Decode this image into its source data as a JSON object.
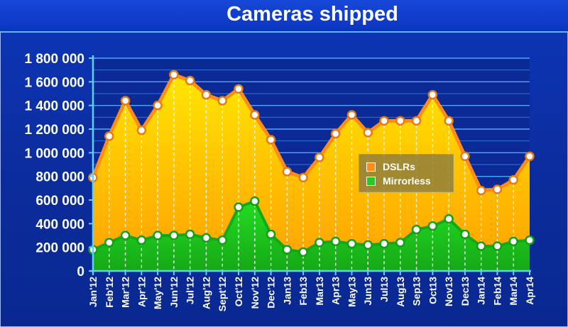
{
  "chart_data": {
    "type": "area",
    "title": "Cameras shipped",
    "categories": [
      "Jan'12",
      "Feb'12",
      "Mar'12",
      "Apr'12",
      "May'12",
      "Jun'12",
      "Jul'12",
      "Aug'12",
      "Sept'12",
      "Oct'12",
      "Nov'12",
      "Dec'12",
      "Jan13",
      "Feb13",
      "Mar13",
      "Apr13",
      "May13",
      "Jun13",
      "Jul13",
      "Aug13",
      "Sep13",
      "Oct13",
      "Nov13",
      "Dec13",
      "Jan14",
      "Feb14",
      "Mar14",
      "Apr14"
    ],
    "series": [
      {
        "name": "DSLRs",
        "color": "#ff8c1a",
        "values": [
          790000,
          1140000,
          1440000,
          1190000,
          1400000,
          1660000,
          1610000,
          1490000,
          1440000,
          1540000,
          1320000,
          1110000,
          840000,
          790000,
          960000,
          1160000,
          1320000,
          1170000,
          1270000,
          1270000,
          1270000,
          1490000,
          1270000,
          970000,
          680000,
          690000,
          770000,
          970000
        ]
      },
      {
        "name": "Mirrorless",
        "color": "#22cc22",
        "values": [
          180000,
          240000,
          300000,
          260000,
          300000,
          300000,
          310000,
          280000,
          260000,
          540000,
          590000,
          310000,
          180000,
          160000,
          240000,
          250000,
          230000,
          220000,
          230000,
          240000,
          350000,
          380000,
          440000,
          310000,
          210000,
          210000,
          250000,
          260000
        ]
      }
    ],
    "yticks": [
      "0",
      "200 000",
      "400 000",
      "600 000",
      "800 000",
      "1 000 000",
      "1 200 000",
      "1 400 000",
      "1 600 000",
      "1 800 000"
    ],
    "ylim": [
      0,
      1800000
    ],
    "grid": true,
    "legend_position": "center-right"
  }
}
